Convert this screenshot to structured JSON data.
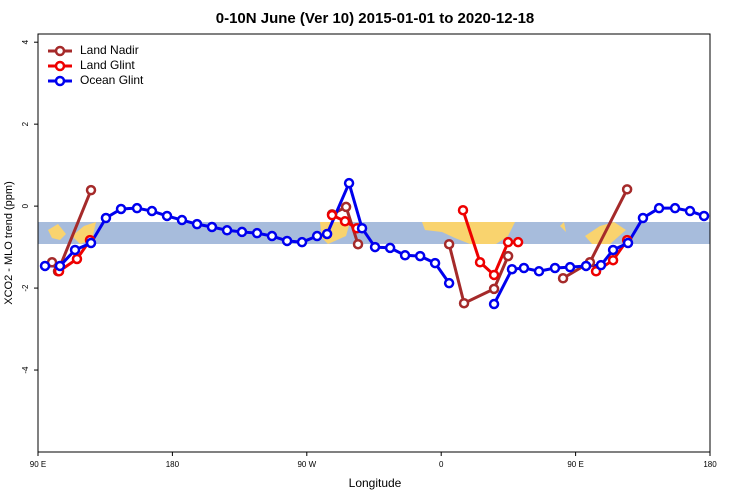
{
  "chart_data": {
    "type": "line",
    "title": "0-10N June (Ver 10)   2015-01-01 to 2020-12-18",
    "xlabel": "Longitude",
    "ylabel": "XCO2 - MLO trend (ppm)",
    "xlim": [
      90,
      540
    ],
    "xticks": [
      {
        "value": 90,
        "label": "90 E"
      },
      180,
      {
        "value": 270,
        "label": "90 W"
      },
      {
        "value": 360,
        "label": "0"
      },
      {
        "value": 450,
        "label": "90 E"
      },
      {
        "value": 540,
        "label": "180"
      }
    ],
    "ylim": [
      -6,
      4.2
    ],
    "yticks": [
      -4,
      -2,
      0,
      2,
      4
    ],
    "legend": "top-left",
    "series": [
      {
        "name": "Land Nadir",
        "color": "#a52a2a",
        "x": [
          99.4,
          103.4,
          125.5,
          null,
          286.9,
          296.3,
          304.3,
          null,
          365.3,
          375.3,
          395.4,
          404.8,
          null,
          441.6,
          459.6,
          484.5
        ],
        "values": [
          -1.37,
          -1.59,
          0.39,
          null,
          -0.2,
          -0.02,
          -0.93,
          null,
          -0.93,
          -2.37,
          -2.02,
          -1.22,
          null,
          -1.76,
          -1.37,
          0.41
        ]
      },
      {
        "name": "Land Glint",
        "color": "#ee0000",
        "x": [
          104.1,
          116.1,
          124.8,
          null,
          286.9,
          295.6,
          303.6,
          null,
          374.6,
          386.0,
          395.4,
          404.8,
          411.5,
          null,
          463.7,
          475.1,
          484.5
        ],
        "values": [
          -1.59,
          -1.29,
          -0.83,
          null,
          -0.22,
          -0.37,
          -0.54,
          null,
          -0.1,
          -1.37,
          -1.68,
          -0.88,
          -0.88,
          null,
          -1.59,
          -1.32,
          -0.83
        ]
      },
      {
        "name": "Ocean Glint",
        "color": "#0000ee",
        "x": [
          94.7,
          104.7,
          114.8,
          125.5,
          135.5,
          145.6,
          156.3,
          166.3,
          176.4,
          186.4,
          196.5,
          206.5,
          216.6,
          226.6,
          236.7,
          246.7,
          256.8,
          266.8,
          276.9,
          283.6,
          298.3,
          307.0,
          315.7,
          325.8,
          335.8,
          345.9,
          355.9,
          365.3,
          null,
          395.4,
          407.4,
          415.4,
          425.5,
          436.2,
          446.3,
          457.0,
          467.0,
          475.1,
          485.1,
          495.1,
          505.9,
          516.6,
          526.6,
          536.0
        ],
        "values": [
          -1.46,
          -1.46,
          -1.07,
          -0.9,
          -0.29,
          -0.07,
          -0.05,
          -0.12,
          -0.24,
          -0.34,
          -0.44,
          -0.51,
          -0.59,
          -0.63,
          -0.66,
          -0.73,
          -0.85,
          -0.88,
          -0.73,
          -0.68,
          0.56,
          -0.54,
          -1.0,
          -1.02,
          -1.2,
          -1.22,
          -1.39,
          -1.88,
          null,
          -2.39,
          -1.54,
          -1.51,
          -1.59,
          -1.51,
          -1.49,
          -1.46,
          -1.44,
          -1.07,
          -0.9,
          -0.29,
          -0.05,
          -0.05,
          -0.12,
          -0.24
        ]
      }
    ]
  }
}
